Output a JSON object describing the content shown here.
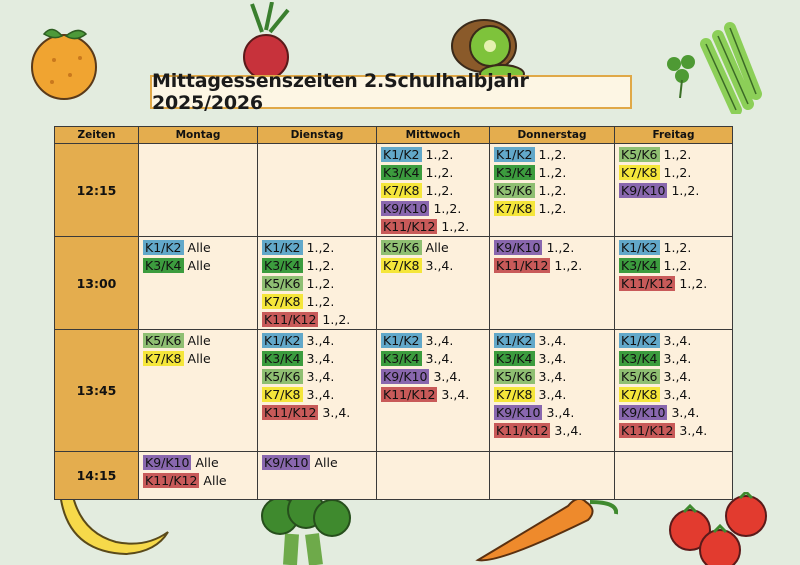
{
  "title": "Mittagessenszeiten 2.Schulhalbjahr 2025/2026",
  "colors": {
    "K1/K2": "#62a8c9",
    "K3/K4": "#3c9c3e",
    "K5/K6": "#8fbf72",
    "K7/K8": "#f5e63a",
    "K9/K10": "#8967ae",
    "K11/K12": "#c85a59",
    "header": "#e4ad4e",
    "cell": "#fdf0dc",
    "background": "#e3ecdf"
  },
  "decorations": [
    "orange-icon",
    "radish-icon",
    "kiwi-icon",
    "celery-icon",
    "parsley-icon",
    "banana-icon",
    "broccoli-icon",
    "carrot-icon",
    "tomatoes-icon"
  ],
  "columns": [
    "Zeiten",
    "Montag",
    "Dienstag",
    "Mittwoch",
    "Donnerstag",
    "Freitag"
  ],
  "rows": [
    {
      "time": "12:15",
      "days": [
        [],
        [],
        [
          [
            "K1/K2",
            "1.,2."
          ],
          [
            "K3/K4",
            "1.,2."
          ],
          [
            "K7/K8",
            "1.,2."
          ],
          [
            "K9/K10",
            "1.,2."
          ],
          [
            "K11/K12",
            "1.,2."
          ]
        ],
        [
          [
            "K1/K2",
            "1.,2."
          ],
          [
            "K3/K4",
            "1.,2."
          ],
          [
            "K5/K6",
            "1.,2."
          ],
          [
            "K7/K8",
            "1.,2."
          ]
        ],
        [
          [
            "K5/K6",
            "1.,2."
          ],
          [
            "K7/K8",
            "1.,2."
          ],
          [
            "K9/K10",
            "1.,2."
          ]
        ]
      ]
    },
    {
      "time": "13:00",
      "days": [
        [
          [
            "K1/K2",
            "Alle"
          ],
          [
            "K3/K4",
            "Alle"
          ]
        ],
        [
          [
            "K1/K2",
            "1.,2."
          ],
          [
            "K3/K4",
            "1.,2."
          ],
          [
            "K5/K6",
            "1.,2."
          ],
          [
            "K7/K8",
            "1.,2."
          ],
          [
            "K11/K12",
            "1.,2."
          ]
        ],
        [
          [
            "K5/K6",
            "Alle"
          ],
          [
            "K7/K8",
            "3.,4."
          ]
        ],
        [
          [
            "K9/K10",
            "1.,2."
          ],
          [
            "K11/K12",
            "1.,2."
          ]
        ],
        [
          [
            "K1/K2",
            "1.,2."
          ],
          [
            "K3/K4",
            "1.,2."
          ],
          [
            "K11/K12",
            "1.,2."
          ]
        ]
      ]
    },
    {
      "time": "13:45",
      "days": [
        [
          [
            "K5/K6",
            "Alle"
          ],
          [
            "K7/K8",
            "Alle"
          ]
        ],
        [
          [
            "K1/K2",
            "3.,4."
          ],
          [
            "K3/K4",
            "3.,4."
          ],
          [
            "K5/K6",
            "3.,4."
          ],
          [
            "K7/K8",
            "3.,4."
          ],
          [
            "K11/K12",
            "3.,4."
          ]
        ],
        [
          [
            "K1/K2",
            "3.,4."
          ],
          [
            "K3/K4",
            "3.,4."
          ],
          [
            "K9/K10",
            "3.,4."
          ],
          [
            "K11/K12",
            "3.,4."
          ]
        ],
        [
          [
            "K1/K2",
            "3.,4."
          ],
          [
            "K3/K4",
            "3.,4."
          ],
          [
            "K5/K6",
            "3.,4."
          ],
          [
            "K7/K8",
            "3.,4."
          ],
          [
            "K9/K10",
            "3.,4."
          ],
          [
            "K11/K12",
            "3.,4."
          ]
        ],
        [
          [
            "K1/K2",
            "3.,4."
          ],
          [
            "K3/K4",
            "3.,4."
          ],
          [
            "K5/K6",
            "3.,4."
          ],
          [
            "K7/K8",
            "3.,4."
          ],
          [
            "K9/K10",
            "3.,4."
          ],
          [
            "K11/K12",
            "3.,4."
          ]
        ]
      ]
    },
    {
      "time": "14:15",
      "days": [
        [
          [
            "K9/K10",
            "Alle"
          ],
          [
            "K11/K12",
            "Alle"
          ]
        ],
        [
          [
            "K9/K10",
            "Alle"
          ]
        ],
        [],
        [],
        []
      ]
    }
  ]
}
